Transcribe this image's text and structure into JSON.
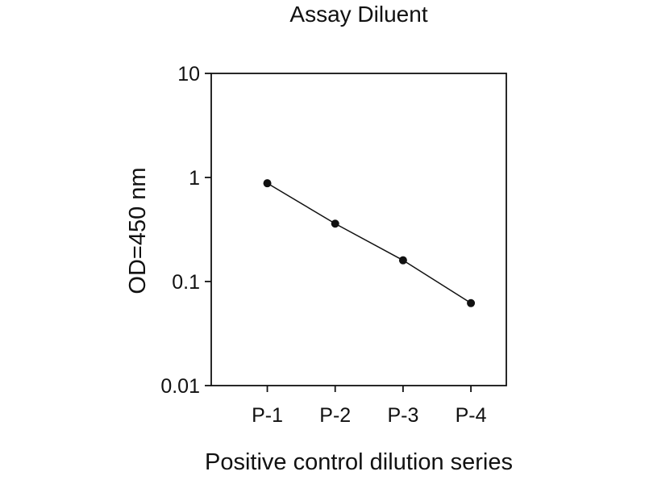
{
  "chart_data": {
    "type": "line",
    "title": "Assay Diluent",
    "xlabel": "Positive control dilution series",
    "ylabel": "OD=450 nm",
    "categories": [
      "P-1",
      "P-2",
      "P-3",
      "P-4"
    ],
    "values": [
      0.88,
      0.36,
      0.16,
      0.062
    ],
    "yscale": "log",
    "ylim": [
      0.01,
      10
    ],
    "yticks": [
      10,
      1,
      0.1,
      0.01
    ],
    "ytick_labels": [
      "10",
      "1",
      "0.1",
      "0.01"
    ],
    "grid": false,
    "legend": "none",
    "marker": "filled-circle",
    "line_color": "#111111",
    "marker_color": "#111111",
    "background_color": "#ffffff"
  }
}
